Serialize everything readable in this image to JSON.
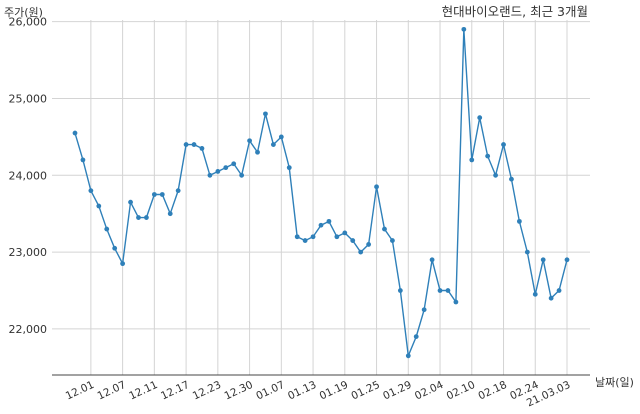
{
  "chart_data": {
    "type": "line",
    "title": "현대바이오랜드, 최근 3개월",
    "ylabel": "주가(원)",
    "xlabel": "날짜(일)",
    "ylim": [
      21400,
      26100
    ],
    "yticks": [
      22000,
      23000,
      24000,
      25000,
      26000
    ],
    "ytick_labels": [
      "22,000",
      "23,000",
      "24,000",
      "25,000",
      "26,000"
    ],
    "xtick_labels": [
      "12.01",
      "12.07",
      "12.11",
      "12.17",
      "12.23",
      "12.30",
      "01.07",
      "01.13",
      "01.19",
      "01.25",
      "01.29",
      "02.04",
      "02.10",
      "02.18",
      "02.24",
      "21.03.03"
    ],
    "xtick_index": [
      2,
      6,
      10,
      14,
      18,
      22,
      26,
      30,
      34,
      38,
      42,
      46,
      50,
      54,
      58,
      62
    ],
    "grid": true,
    "series": [
      {
        "color": "#2f80b9",
        "values": [
          24550,
          24200,
          23800,
          23600,
          23300,
          23050,
          22850,
          23650,
          23450,
          23450,
          23750,
          23750,
          23500,
          23800,
          24400,
          24400,
          24350,
          24000,
          24050,
          24100,
          24150,
          24000,
          24450,
          24300,
          24800,
          24400,
          24500,
          24100,
          23200,
          23150,
          23200,
          23350,
          23400,
          23200,
          23250,
          23150,
          23000,
          23100,
          23850,
          23300,
          23150,
          22500,
          21650,
          21900,
          22250,
          22900,
          22500,
          22500,
          22350,
          25900,
          24200,
          24750,
          24250,
          24000,
          24400,
          23950,
          23400,
          23000,
          22450,
          22900,
          22400,
          22500,
          22900
        ]
      }
    ]
  }
}
